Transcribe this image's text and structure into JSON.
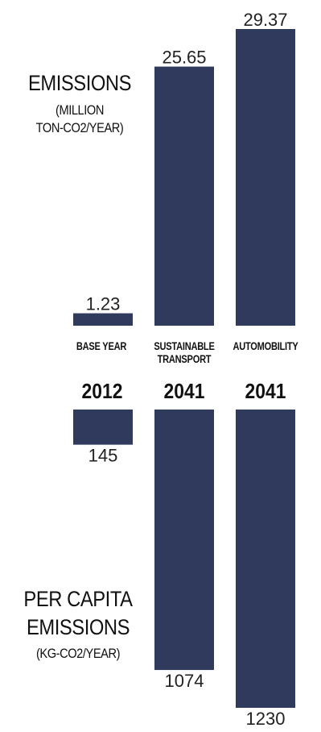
{
  "chart_data": [
    {
      "type": "bar",
      "title": "EMISSIONS",
      "subtitle": "(MILLION TON-CO2/YEAR)",
      "categories": [
        "BASE YEAR",
        "SUSTAINABLE TRANSPORT",
        "AUTOMOBILITY"
      ],
      "years": [
        "2012",
        "2041",
        "2041"
      ],
      "values": [
        1.23,
        25.65,
        29.37
      ],
      "value_labels": [
        "1.23",
        "25.65",
        "29.37"
      ],
      "color": "#2f3a5c"
    },
    {
      "type": "bar",
      "title": "PER CAPITA EMISSIONS",
      "subtitle": "(KG-CO2/YEAR)",
      "categories": [
        "BASE YEAR",
        "SUSTAINABLE TRANSPORT",
        "AUTOMOBILITY"
      ],
      "years": [
        "2012",
        "2041",
        "2041"
      ],
      "values": [
        145,
        1074,
        1230
      ],
      "value_labels": [
        "145",
        "1074",
        "1230"
      ],
      "color": "#2f3a5c"
    }
  ],
  "labels": {
    "top_title": "EMISSIONS",
    "top_subtitle_1": "(MILLION",
    "top_subtitle_2": "TON-CO2/YEAR)",
    "bottom_title_1": "PER CAPITA",
    "bottom_title_2": "EMISSIONS",
    "bottom_subtitle": "(KG-CO2/YEAR)",
    "cat_base": "BASE YEAR",
    "cat_sust_1": "SUSTAINABLE",
    "cat_sust_2": "TRANSPORT",
    "cat_auto": "AUTOMOBILITY",
    "year_base": "2012",
    "year_sust": "2041",
    "year_auto": "2041"
  }
}
